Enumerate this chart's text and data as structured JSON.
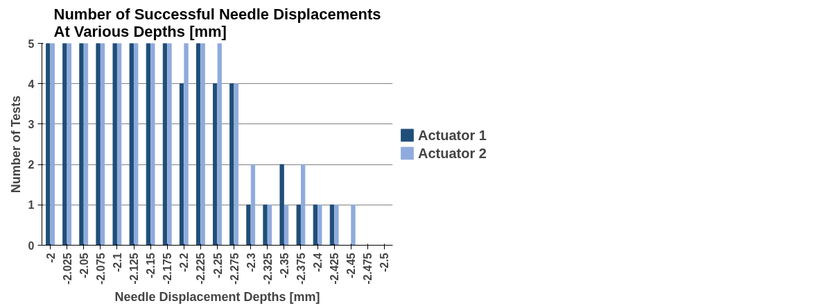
{
  "chart_data": {
    "type": "bar",
    "title": "Number of Successful Needle Displacements\nAt Various Depths [mm]",
    "xlabel": "Needle Displacement Depths [mm]",
    "ylabel": "Number of Tests",
    "categories": [
      "-2",
      "-2.025",
      "-2.05",
      "-2.075",
      "-2.1",
      "-2.125",
      "-2.15",
      "-2.175",
      "-2.2",
      "-2.225",
      "-2.25",
      "-2.275",
      "-2.3",
      "-2.325",
      "-2.35",
      "-2.375",
      "-2.4",
      "-2.425",
      "-2.45",
      "-2.475",
      "-2.5"
    ],
    "series": [
      {
        "name": "Actuator 1",
        "color": "#1f4e79",
        "values": [
          5,
          5,
          5,
          5,
          5,
          5,
          5,
          5,
          4,
          5,
          4,
          4,
          1,
          1,
          2,
          1,
          1,
          1,
          0,
          0,
          0
        ]
      },
      {
        "name": "Actuator 2",
        "color": "#8faadc",
        "values": [
          5,
          5,
          5,
          5,
          5,
          5,
          5,
          5,
          5,
          5,
          5,
          4,
          2,
          1,
          1,
          2,
          1,
          1,
          1,
          0,
          0
        ]
      }
    ],
    "ylim": [
      0,
      5
    ],
    "yticks": [
      0,
      1,
      2,
      3,
      4,
      5
    ],
    "grid": "y",
    "legend": "right"
  }
}
